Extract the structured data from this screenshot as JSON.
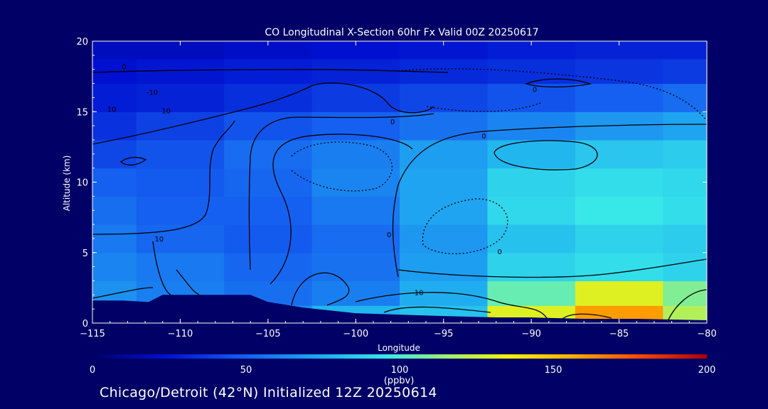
{
  "chart_data": {
    "type": "heatmap",
    "title": "CO Longitudinal X-Section 60hr  Fx Valid 00Z 20250617",
    "xlabel": "Longitude",
    "ylabel": "Altitude (km)",
    "xlim": [
      -115,
      -80
    ],
    "ylim": [
      0,
      20
    ],
    "xticks": [
      -115,
      -110,
      -105,
      -100,
      -95,
      -90,
      -85,
      -80
    ],
    "yticks": [
      0,
      5,
      10,
      15,
      20
    ],
    "xtick_labels": [
      "−115",
      "−110",
      "−105",
      "−100",
      "−95",
      "−90",
      "−85",
      "−80"
    ],
    "ytick_labels": [
      "0",
      "5",
      "10",
      "15",
      "20"
    ],
    "colorbar": {
      "min": 0,
      "max": 200,
      "ticks": [
        0,
        50,
        100,
        150,
        200
      ],
      "tick_labels": [
        "0",
        "50",
        "100",
        "150",
        "200"
      ],
      "units": "(ppbv)"
    },
    "grid": {
      "lon": [
        -115,
        -110,
        -105,
        -100,
        -95,
        -90,
        -85,
        -80
      ],
      "alt": [
        0.5,
        2,
        4,
        6,
        8,
        10,
        12,
        14,
        16,
        18,
        19.5
      ],
      "values": [
        [
          72,
          70,
          65,
          78,
          82,
          130,
          160,
          120
        ],
        [
          66,
          60,
          55,
          60,
          75,
          105,
          130,
          110
        ],
        [
          62,
          58,
          52,
          56,
          70,
          88,
          92,
          88
        ],
        [
          58,
          52,
          48,
          54,
          68,
          82,
          88,
          86
        ],
        [
          55,
          50,
          50,
          58,
          72,
          90,
          96,
          92
        ],
        [
          50,
          48,
          52,
          62,
          72,
          88,
          92,
          90
        ],
        [
          42,
          46,
          54,
          60,
          70,
          78,
          84,
          86
        ],
        [
          35,
          40,
          46,
          50,
          56,
          62,
          68,
          72
        ],
        [
          28,
          30,
          34,
          38,
          42,
          46,
          50,
          54
        ],
        [
          24,
          26,
          28,
          30,
          32,
          34,
          36,
          38
        ],
        [
          20,
          20,
          22,
          24,
          26,
          28,
          30,
          30
        ]
      ]
    },
    "terrain": {
      "lon": [
        -115,
        -113.3,
        -111.8,
        -111,
        -106,
        -105,
        -103,
        -100,
        -95,
        -92,
        -90,
        -87,
        -84,
        -80
      ],
      "alt": [
        1.6,
        1.6,
        1.5,
        2.0,
        2.0,
        1.5,
        1.1,
        0.7,
        0.5,
        0.4,
        0.4,
        0.3,
        0.3,
        0.2
      ]
    },
    "contour_labels": [
      "0",
      "-10",
      "10",
      "10",
      "0",
      "0",
      "0",
      "0",
      "0",
      "10",
      "0",
      "0",
      "10"
    ]
  },
  "footer": {
    "text": "Chicago/Detroit (42°N) Initialized 12Z 20250614"
  }
}
